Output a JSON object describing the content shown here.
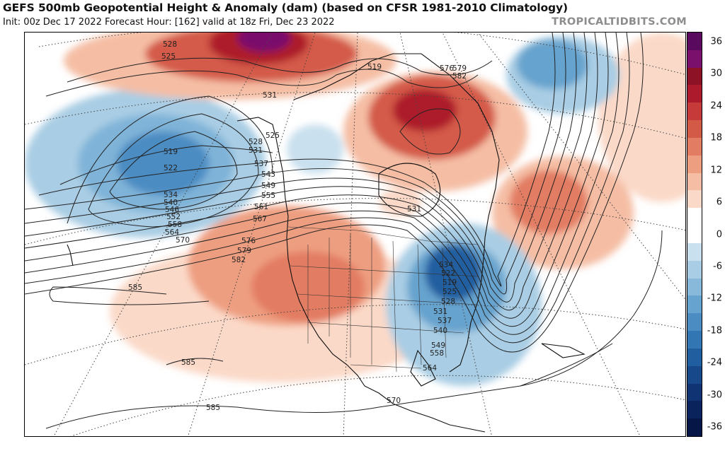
{
  "header": {
    "title": "GEFS 500mb Geopotential Height & Anomaly (dam) (based on CFSR 1981-2010 Climatology)",
    "subtitle": "Init: 00z Dec 17 2022   Forecast Hour: [162]   valid at 18z Fri, Dec 23 2022",
    "credit": "TROPICALTIDBITS.COM"
  },
  "colorbar": {
    "ticks": [
      "36",
      "30",
      "24",
      "18",
      "12",
      "6",
      "0",
      "-6",
      "-12",
      "-18",
      "-24",
      "-30",
      "-36"
    ],
    "colors": [
      "#5a0a5e",
      "#7a0f6c",
      "#8e1226",
      "#ad1a2c",
      "#c63a3a",
      "#d45a48",
      "#e27c62",
      "#ee9e80",
      "#f5bea4",
      "#fbd9c8",
      "#ffffff",
      "#ffffff",
      "#c9e0ee",
      "#a9cde4",
      "#88b9db",
      "#66a3ce",
      "#4b8cc2",
      "#3276b4",
      "#215ea0",
      "#17488a",
      "#103473",
      "#0a235c",
      "#061646"
    ]
  },
  "contour_labels": [
    "528",
    "525",
    "531",
    "519",
    "522",
    "534",
    "540",
    "546",
    "552",
    "558",
    "564",
    "570",
    "576",
    "579",
    "582",
    "585",
    "585",
    "585",
    "525",
    "528",
    "531",
    "537",
    "543",
    "549",
    "555",
    "561",
    "567",
    "576",
    "579",
    "582",
    "519",
    "531",
    "534",
    "522",
    "519",
    "525",
    "528",
    "531",
    "537",
    "540",
    "549",
    "558",
    "564",
    "570",
    "576",
    "579",
    "582",
    "585"
  ]
}
